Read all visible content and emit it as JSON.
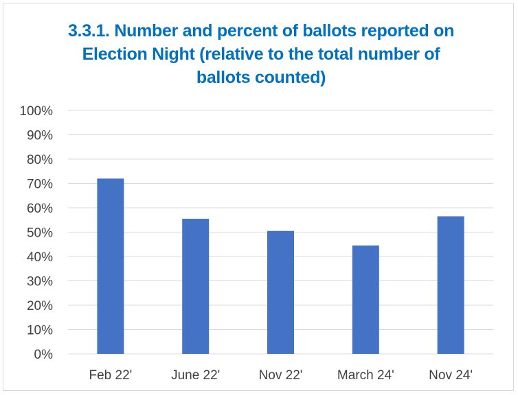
{
  "colors": {
    "bar": "#4472c4",
    "title": "#0070c0",
    "grid": "#d9d9d9",
    "text": "#404040"
  },
  "chart_data": {
    "type": "bar",
    "title_lines": [
      "3.3.1. Number and percent of ballots reported on",
      "Election Night (relative to the total number of",
      "ballots counted)"
    ],
    "categories": [
      "Feb 22'",
      "June 22'",
      "Nov 22'",
      "March 24'",
      "Nov 24'"
    ],
    "values": [
      72,
      55.5,
      50.5,
      44.5,
      56.5
    ],
    "ylim": [
      0,
      100
    ],
    "ytick_step": 10,
    "yticks": [
      "0%",
      "10%",
      "20%",
      "30%",
      "40%",
      "50%",
      "60%",
      "70%",
      "80%",
      "90%",
      "100%"
    ],
    "grid": true,
    "legend": "none"
  }
}
